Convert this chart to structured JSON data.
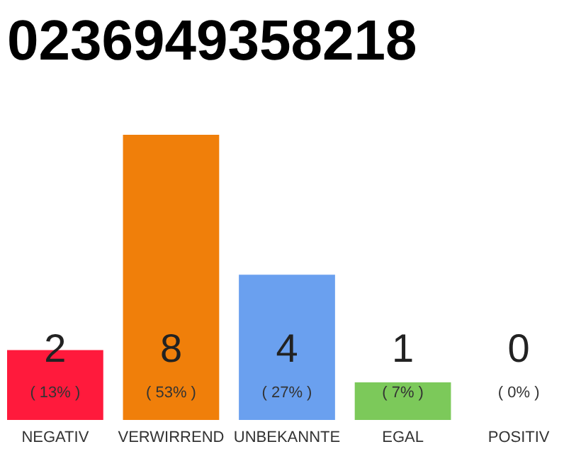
{
  "chart_data": {
    "type": "bar",
    "title": "0236949358218",
    "categories": [
      "NEGATIV",
      "VERWIRREND",
      "UNBEKANNTE",
      "EGAL",
      "POSITIV"
    ],
    "values": [
      13,
      53,
      27,
      7,
      0
    ],
    "colors": [
      "#ff1a3c",
      "#f07f0a",
      "#6aa0ef",
      "#7cc95a",
      "#2aa84a"
    ],
    "value_labels": [
      "( 13% )",
      "( 53% )",
      "( 27% )",
      "( 7% )",
      "( 0% )"
    ],
    "annotations": [
      "2",
      "8",
      "4",
      "1",
      "0"
    ]
  }
}
